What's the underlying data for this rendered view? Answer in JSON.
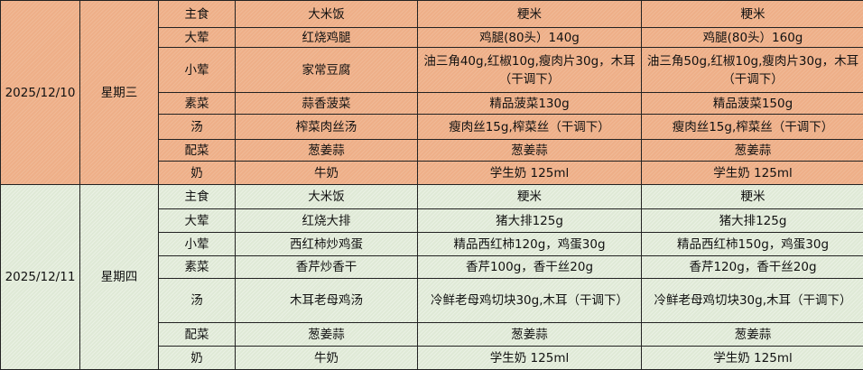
{
  "days": [
    {
      "date": "2025/12/10",
      "weekday": "星期三",
      "color": "#eeaf88",
      "rows": [
        {
          "category": "主食",
          "dish": "大米饭",
          "amount_a": "粳米",
          "amount_b": "粳米"
        },
        {
          "category": "大荤",
          "dish": "红烧鸡腿",
          "amount_a": "鸡腿(80头）140g",
          "amount_b": "鸡腿(80头）160g"
        },
        {
          "category": "小荤",
          "dish": "家常豆腐",
          "amount_a": "油三角40g,红椒10g,瘦肉片30g，木耳（干调下）",
          "amount_b": "油三角50g,红椒10g,瘦肉片30g，木耳（干调下）"
        },
        {
          "category": "素菜",
          "dish": "蒜香菠菜",
          "amount_a": "精品菠菜130g",
          "amount_b": "精品菠菜150g"
        },
        {
          "category": "汤",
          "dish": "榨菜肉丝汤",
          "amount_a": "瘦肉丝15g,榨菜丝（干调下）",
          "amount_b": "瘦肉丝15g,榨菜丝（干调下）"
        },
        {
          "category": "配菜",
          "dish": "葱姜蒜",
          "amount_a": "葱姜蒜",
          "amount_b": "葱姜蒜"
        },
        {
          "category": "奶",
          "dish": "牛奶",
          "amount_a": "学生奶 125ml",
          "amount_b": "学生奶 125ml"
        }
      ]
    },
    {
      "date": "2025/12/11",
      "weekday": "星期四",
      "color": "#dfe9d6",
      "rows": [
        {
          "category": "主食",
          "dish": "大米饭",
          "amount_a": "粳米",
          "amount_b": "粳米"
        },
        {
          "category": "大荤",
          "dish": "红烧大排",
          "amount_a": "猪大排125g",
          "amount_b": "猪大排125g"
        },
        {
          "category": "小荤",
          "dish": "西红柿炒鸡蛋",
          "amount_a": "精品西红柿120g，鸡蛋30g",
          "amount_b": "精品西红柿150g，鸡蛋30g"
        },
        {
          "category": "素菜",
          "dish": "香芹炒香干",
          "amount_a": "香芹100g，香干丝20g",
          "amount_b": "香芹120g，香干丝20g"
        },
        {
          "category": "汤",
          "dish": "木耳老母鸡汤",
          "amount_a": "冷鲜老母鸡切块30g,木耳（干调下）",
          "amount_b": "冷鲜老母鸡切块30g,木耳（干调下）"
        },
        {
          "category": "配菜",
          "dish": "葱姜蒜",
          "amount_a": "葱姜蒜",
          "amount_b": "葱姜蒜"
        },
        {
          "category": "奶",
          "dish": "牛奶",
          "amount_a": "学生奶 125ml",
          "amount_b": "学生奶 125ml"
        }
      ]
    }
  ]
}
